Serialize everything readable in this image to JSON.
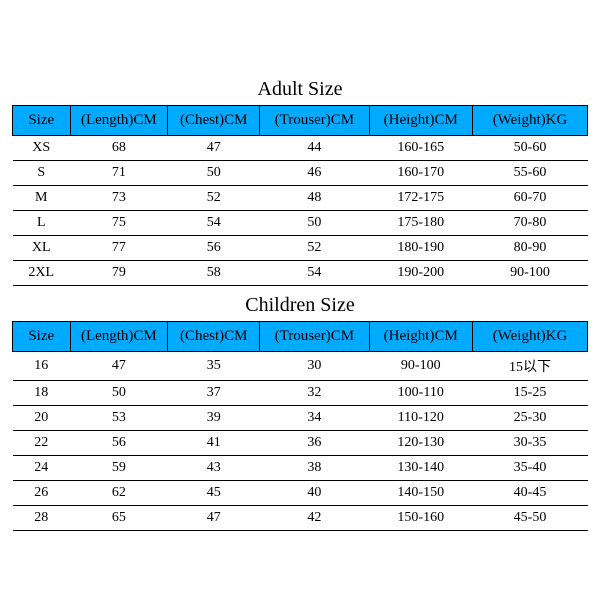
{
  "adult": {
    "title": "Adult Size",
    "columns": [
      "Size",
      "(Length)CM",
      "(Chest)CM",
      "(Trouser)CM",
      "(Height)CM",
      "(Weight)KG"
    ],
    "rows": [
      [
        "XS",
        "68",
        "47",
        "44",
        "160-165",
        "50-60"
      ],
      [
        "S",
        "71",
        "50",
        "46",
        "160-170",
        "55-60"
      ],
      [
        "M",
        "73",
        "52",
        "48",
        "172-175",
        "60-70"
      ],
      [
        "L",
        "75",
        "54",
        "50",
        "175-180",
        "70-80"
      ],
      [
        "XL",
        "77",
        "56",
        "52",
        "180-190",
        "80-90"
      ],
      [
        "2XL",
        "79",
        "58",
        "54",
        "190-200",
        "90-100"
      ]
    ]
  },
  "children": {
    "title": "Children Size",
    "columns": [
      "Size",
      "(Length)CM",
      "(Chest)CM",
      "(Trouser)CM",
      "(Height)CM",
      "(Weight)KG"
    ],
    "rows": [
      [
        "16",
        "47",
        "35",
        "30",
        "90-100",
        "15以下"
      ],
      [
        "18",
        "50",
        "37",
        "32",
        "100-110",
        "15-25"
      ],
      [
        "20",
        "53",
        "39",
        "34",
        "110-120",
        "25-30"
      ],
      [
        "22",
        "56",
        "41",
        "36",
        "120-130",
        "30-35"
      ],
      [
        "24",
        "59",
        "43",
        "38",
        "130-140",
        "35-40"
      ],
      [
        "26",
        "62",
        "45",
        "40",
        "140-150",
        "40-45"
      ],
      [
        "28",
        "65",
        "47",
        "42",
        "150-160",
        "45-50"
      ]
    ]
  },
  "style": {
    "header_bg": "#00aaff",
    "border_color": "#000000",
    "background_color": "#ffffff",
    "title_fontsize": 20,
    "header_fontsize": 15,
    "cell_fontsize": 14,
    "font_family": "Times New Roman"
  }
}
